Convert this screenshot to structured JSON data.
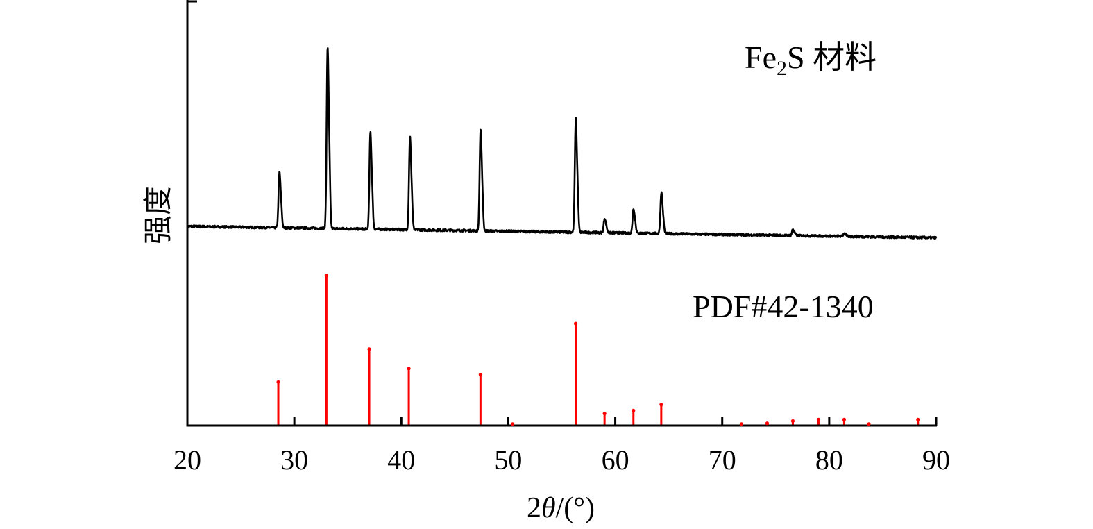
{
  "chart_data": {
    "type": "line",
    "xlabel": {
      "prefix": "2",
      "symbol": "θ",
      "suffix": "/(°)"
    },
    "ylabel": "强度",
    "xlim": [
      20,
      90
    ],
    "xticks": [
      20,
      30,
      40,
      50,
      60,
      70,
      80,
      90
    ],
    "grid": false,
    "legend": "none",
    "series": [
      {
        "name": "Fe2S 材料",
        "label": {
          "base": "Fe",
          "sub": "2",
          "rest": "S 材料"
        },
        "color": "#000000",
        "kind": "pattern",
        "baseline_start": 0.0,
        "baseline_end": -0.06,
        "peaks": [
          {
            "x": 28.6,
            "y": 0.27
          },
          {
            "x": 33.1,
            "y": 0.88
          },
          {
            "x": 37.1,
            "y": 0.47
          },
          {
            "x": 40.8,
            "y": 0.45
          },
          {
            "x": 47.4,
            "y": 0.49
          },
          {
            "x": 56.3,
            "y": 0.55
          },
          {
            "x": 59.0,
            "y": 0.07
          },
          {
            "x": 61.7,
            "y": 0.12
          },
          {
            "x": 64.3,
            "y": 0.2
          },
          {
            "x": 76.6,
            "y": 0.03
          },
          {
            "x": 81.4,
            "y": 0.015
          }
        ]
      },
      {
        "name": "PDF#42-1340",
        "label": {
          "base": "PDF#42-1340",
          "sub": "",
          "rest": ""
        },
        "color": "#ff0000",
        "kind": "sticks",
        "sticks": [
          {
            "x": 28.5,
            "y": 29
          },
          {
            "x": 33.0,
            "y": 100
          },
          {
            "x": 37.0,
            "y": 51
          },
          {
            "x": 40.7,
            "y": 38
          },
          {
            "x": 47.4,
            "y": 34
          },
          {
            "x": 50.4,
            "y": 1
          },
          {
            "x": 56.3,
            "y": 68
          },
          {
            "x": 59.0,
            "y": 8
          },
          {
            "x": 61.7,
            "y": 10
          },
          {
            "x": 64.3,
            "y": 14
          },
          {
            "x": 71.8,
            "y": 1
          },
          {
            "x": 74.2,
            "y": 1.5
          },
          {
            "x": 76.6,
            "y": 3
          },
          {
            "x": 79.0,
            "y": 4
          },
          {
            "x": 81.4,
            "y": 4
          },
          {
            "x": 83.7,
            "y": 1
          },
          {
            "x": 88.3,
            "y": 4
          }
        ]
      }
    ]
  }
}
